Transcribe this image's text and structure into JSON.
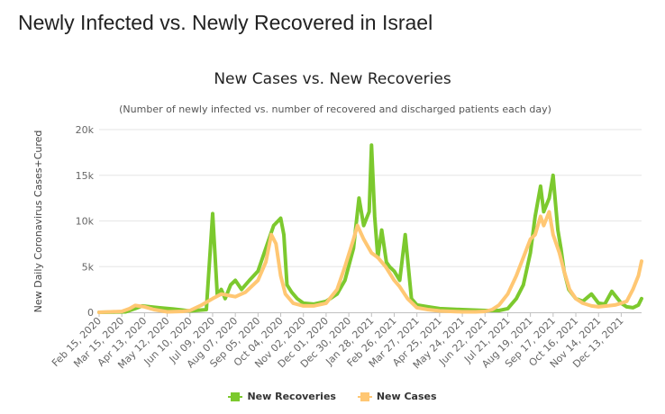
{
  "page": {
    "title": "Newly Infected vs. Newly Recovered in Israel"
  },
  "chart_data": {
    "type": "line",
    "title": "New Cases vs. New Recoveries",
    "subtitle": "(Number of newly infected vs. number of recovered and discharged patients each day)",
    "xlabel": "",
    "ylabel": "New Daily Coronavirus Cases+Cured",
    "ylim": [
      0,
      20000
    ],
    "yticks": [
      "0",
      "5k",
      "10k",
      "15k",
      "20k"
    ],
    "ytick_values": [
      0,
      5000,
      10000,
      15000,
      20000
    ],
    "xlim": [
      "2020-02-15",
      "2022-01-08"
    ],
    "xtick_labels": [
      "Feb 15, 2020",
      "Mar 15, 2020",
      "Apr 13, 2020",
      "May 12, 2020",
      "Jun 10, 2020",
      "Jul 09, 2020",
      "Aug 07, 2020",
      "Sep 05, 2020",
      "Oct 04, 2020",
      "Nov 02, 2020",
      "Dec 01, 2020",
      "Dec 30, 2020",
      "Jan 28, 2021",
      "Feb 26, 2021",
      "Mar 27, 2021",
      "Apr 25, 2021",
      "May 24, 2021",
      "Jun 22, 2021",
      "Jul 21, 2021",
      "Aug 19, 2021",
      "Sep 17, 2021",
      "Oct 16, 2021",
      "Nov 14, 2021",
      "Dec 13, 2021"
    ],
    "grid": true,
    "legend": "bottom-center",
    "series": [
      {
        "name": "New Recoveries",
        "color": "#7cc92e",
        "x": [
          "2020-02-15",
          "2020-03-20",
          "2020-04-01",
          "2020-04-10",
          "2020-04-20",
          "2020-05-01",
          "2020-05-20",
          "2020-06-10",
          "2020-07-01",
          "2020-07-09",
          "2020-07-15",
          "2020-07-20",
          "2020-07-25",
          "2020-08-01",
          "2020-08-07",
          "2020-08-15",
          "2020-08-25",
          "2020-09-05",
          "2020-09-15",
          "2020-09-25",
          "2020-10-04",
          "2020-10-08",
          "2020-10-12",
          "2020-10-18",
          "2020-10-25",
          "2020-11-02",
          "2020-11-15",
          "2020-12-01",
          "2020-12-15",
          "2020-12-25",
          "2021-01-05",
          "2021-01-12",
          "2021-01-18",
          "2021-01-25",
          "2021-01-28",
          "2021-02-01",
          "2021-02-05",
          "2021-02-10",
          "2021-02-16",
          "2021-02-20",
          "2021-02-26",
          "2021-03-05",
          "2021-03-12",
          "2021-03-20",
          "2021-03-27",
          "2021-04-10",
          "2021-04-25",
          "2021-05-24",
          "2021-06-22",
          "2021-07-10",
          "2021-07-21",
          "2021-08-01",
          "2021-08-10",
          "2021-08-19",
          "2021-08-25",
          "2021-09-01",
          "2021-09-05",
          "2021-09-12",
          "2021-09-17",
          "2021-09-20",
          "2021-09-23",
          "2021-09-27",
          "2021-10-01",
          "2021-10-07",
          "2021-10-16",
          "2021-10-25",
          "2021-11-05",
          "2021-11-14",
          "2021-11-22",
          "2021-12-01",
          "2021-12-13",
          "2021-12-20",
          "2021-12-28",
          "2022-01-04",
          "2022-01-08"
        ],
        "values": [
          0,
          50,
          400,
          700,
          600,
          500,
          350,
          150,
          300,
          10800,
          1800,
          2500,
          1500,
          3000,
          3500,
          2500,
          3500,
          4500,
          7000,
          9500,
          10300,
          8500,
          3000,
          2200,
          1500,
          1000,
          900,
          1200,
          2000,
          3500,
          7000,
          12500,
          9500,
          11000,
          18300,
          10500,
          6000,
          9000,
          5500,
          5000,
          4500,
          3500,
          8500,
          1500,
          800,
          600,
          400,
          300,
          200,
          200,
          400,
          1500,
          3000,
          6500,
          10500,
          13800,
          11000,
          12500,
          15000,
          12000,
          9000,
          7000,
          4500,
          2500,
          1500,
          1200,
          2000,
          1000,
          900,
          2300,
          1000,
          600,
          500,
          800,
          1500
        ]
      },
      {
        "name": "New Cases",
        "color": "#ffc773",
        "x": [
          "2020-02-15",
          "2020-03-15",
          "2020-03-25",
          "2020-04-01",
          "2020-04-13",
          "2020-04-25",
          "2020-05-12",
          "2020-06-01",
          "2020-06-10",
          "2020-06-25",
          "2020-07-09",
          "2020-07-20",
          "2020-08-07",
          "2020-08-20",
          "2020-09-05",
          "2020-09-15",
          "2020-09-22",
          "2020-09-28",
          "2020-10-04",
          "2020-10-10",
          "2020-10-20",
          "2020-11-02",
          "2020-11-15",
          "2020-12-01",
          "2020-12-15",
          "2020-12-25",
          "2021-01-05",
          "2021-01-10",
          "2021-01-18",
          "2021-01-28",
          "2021-02-05",
          "2021-02-15",
          "2021-02-26",
          "2021-03-05",
          "2021-03-15",
          "2021-03-27",
          "2021-04-10",
          "2021-04-25",
          "2021-05-24",
          "2021-06-10",
          "2021-06-22",
          "2021-07-01",
          "2021-07-10",
          "2021-07-21",
          "2021-08-01",
          "2021-08-10",
          "2021-08-19",
          "2021-08-25",
          "2021-09-01",
          "2021-09-05",
          "2021-09-12",
          "2021-09-17",
          "2021-09-25",
          "2021-10-01",
          "2021-10-08",
          "2021-10-16",
          "2021-10-25",
          "2021-11-05",
          "2021-11-14",
          "2021-11-25",
          "2021-12-05",
          "2021-12-13",
          "2021-12-20",
          "2021-12-28",
          "2022-01-04",
          "2022-01-08"
        ],
        "values": [
          0,
          100,
          400,
          750,
          600,
          300,
          50,
          100,
          200,
          800,
          1500,
          2000,
          1700,
          2200,
          3500,
          5500,
          8500,
          7500,
          4000,
          2000,
          1000,
          700,
          700,
          1000,
          2500,
          5000,
          8000,
          9500,
          8000,
          6500,
          6000,
          5000,
          3500,
          2800,
          1500,
          500,
          300,
          150,
          50,
          50,
          100,
          300,
          800,
          2000,
          4000,
          6000,
          8000,
          8500,
          10500,
          9500,
          11000,
          8500,
          6500,
          4500,
          2500,
          1500,
          1000,
          700,
          600,
          700,
          800,
          1000,
          1200,
          2500,
          4000,
          5600
        ]
      }
    ]
  }
}
